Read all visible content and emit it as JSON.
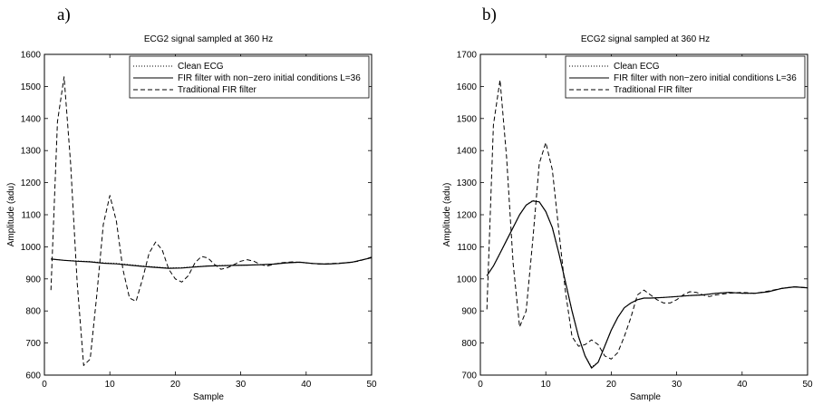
{
  "chart_data": [
    {
      "type": "line",
      "panel_label": "a)",
      "title": "ECG2 signal sampled at 360 Hz",
      "xlabel": "Sample",
      "ylabel": "Amplitude (adu)",
      "xlim": [
        0,
        50
      ],
      "ylim": [
        600,
        1600
      ],
      "xticks": [
        0,
        10,
        20,
        30,
        40,
        50
      ],
      "yticks": [
        600,
        700,
        800,
        900,
        1000,
        1100,
        1200,
        1300,
        1400,
        1500,
        1600
      ],
      "grid": false,
      "legend_position": "top-right",
      "series": [
        {
          "name": "Clean ECG",
          "style": "dotted",
          "x": [
            1,
            3,
            5,
            7,
            9,
            11,
            13,
            15,
            17,
            19,
            21,
            23,
            25,
            27,
            29,
            31,
            33,
            35,
            37,
            39,
            41,
            43,
            45,
            47,
            50
          ],
          "y": [
            962,
            958,
            956,
            954,
            950,
            948,
            944,
            940,
            937,
            934,
            935,
            938,
            940,
            942,
            942,
            943,
            944,
            946,
            950,
            952,
            948,
            946,
            948,
            952,
            966
          ]
        },
        {
          "name": "FIR filter with non−zero initial conditions L=36",
          "style": "solid",
          "x": [
            1,
            3,
            5,
            7,
            9,
            11,
            13,
            15,
            17,
            19,
            21,
            23,
            25,
            27,
            29,
            31,
            33,
            35,
            37,
            39,
            41,
            43,
            45,
            47,
            50
          ],
          "y": [
            962,
            958,
            955,
            953,
            949,
            947,
            943,
            939,
            936,
            933,
            934,
            937,
            940,
            941,
            942,
            943,
            944,
            946,
            950,
            952,
            948,
            946,
            948,
            952,
            966
          ]
        },
        {
          "name": "Traditional FIR filter",
          "style": "dashed",
          "x": [
            1,
            2,
            3,
            4,
            5,
            6,
            7,
            8,
            9,
            10,
            11,
            12,
            13,
            14,
            15,
            16,
            17,
            18,
            19,
            20,
            21,
            22,
            23,
            24,
            25,
            26,
            27,
            28,
            29,
            30,
            31,
            32,
            33,
            34,
            35,
            36,
            38,
            40,
            42,
            44,
            46,
            48,
            50
          ],
          "y": [
            865,
            1390,
            1530,
            1260,
            890,
            630,
            650,
            850,
            1070,
            1160,
            1080,
            930,
            840,
            830,
            900,
            980,
            1015,
            990,
            930,
            900,
            890,
            910,
            950,
            970,
            965,
            945,
            930,
            935,
            945,
            955,
            960,
            955,
            945,
            940,
            945,
            950,
            953,
            950,
            946,
            948,
            950,
            955,
            968
          ]
        }
      ]
    },
    {
      "type": "line",
      "panel_label": "b)",
      "title": "ECG2 signal sampled at 360 Hz",
      "xlabel": "Sample",
      "ylabel": "Amplitude (adu)",
      "xlim": [
        0,
        50
      ],
      "ylim": [
        700,
        1700
      ],
      "xticks": [
        0,
        10,
        20,
        30,
        40,
        50
      ],
      "yticks": [
        700,
        800,
        900,
        1000,
        1100,
        1200,
        1300,
        1400,
        1500,
        1600,
        1700
      ],
      "grid": false,
      "legend_position": "top-right",
      "series": [
        {
          "name": "Clean ECG",
          "style": "dotted",
          "x": [
            1,
            2,
            3,
            4,
            5,
            6,
            7,
            8,
            9,
            10,
            11,
            12,
            13,
            14,
            15,
            16,
            17,
            18,
            19,
            20,
            21,
            22,
            23,
            24,
            25,
            26,
            28,
            30,
            32,
            34,
            36,
            38,
            40,
            42,
            44,
            46,
            48,
            50
          ],
          "y": [
            1010,
            1040,
            1080,
            1120,
            1160,
            1200,
            1230,
            1245,
            1240,
            1210,
            1160,
            1080,
            990,
            900,
            820,
            760,
            725,
            740,
            790,
            840,
            880,
            910,
            925,
            935,
            940,
            940,
            942,
            945,
            948,
            950,
            955,
            958,
            955,
            955,
            960,
            970,
            975,
            972
          ]
        },
        {
          "name": "FIR filter with non−zero initial conditions L=36",
          "style": "solid",
          "x": [
            1,
            2,
            3,
            4,
            5,
            6,
            7,
            8,
            9,
            10,
            11,
            12,
            13,
            14,
            15,
            16,
            17,
            18,
            19,
            20,
            21,
            22,
            23,
            24,
            25,
            26,
            28,
            30,
            32,
            34,
            36,
            38,
            40,
            42,
            44,
            46,
            48,
            50
          ],
          "y": [
            1010,
            1040,
            1080,
            1120,
            1160,
            1200,
            1230,
            1243,
            1240,
            1210,
            1160,
            1080,
            990,
            900,
            820,
            760,
            722,
            740,
            790,
            840,
            880,
            910,
            925,
            935,
            940,
            940,
            942,
            945,
            948,
            950,
            955,
            958,
            955,
            955,
            960,
            970,
            975,
            972
          ]
        },
        {
          "name": "Traditional FIR filter",
          "style": "dashed",
          "x": [
            1,
            2,
            3,
            4,
            5,
            6,
            7,
            8,
            9,
            10,
            11,
            12,
            13,
            14,
            15,
            16,
            17,
            18,
            19,
            20,
            21,
            22,
            23,
            24,
            25,
            26,
            27,
            28,
            29,
            30,
            31,
            32,
            33,
            34,
            35,
            36,
            38,
            40,
            42,
            44,
            46,
            48,
            50
          ],
          "y": [
            905,
            1480,
            1620,
            1380,
            1050,
            850,
            900,
            1120,
            1360,
            1425,
            1340,
            1150,
            960,
            820,
            790,
            795,
            810,
            795,
            760,
            750,
            770,
            820,
            880,
            950,
            965,
            950,
            935,
            925,
            925,
            935,
            950,
            960,
            958,
            950,
            945,
            950,
            955,
            958,
            955,
            962,
            970,
            975,
            972
          ]
        }
      ]
    }
  ]
}
